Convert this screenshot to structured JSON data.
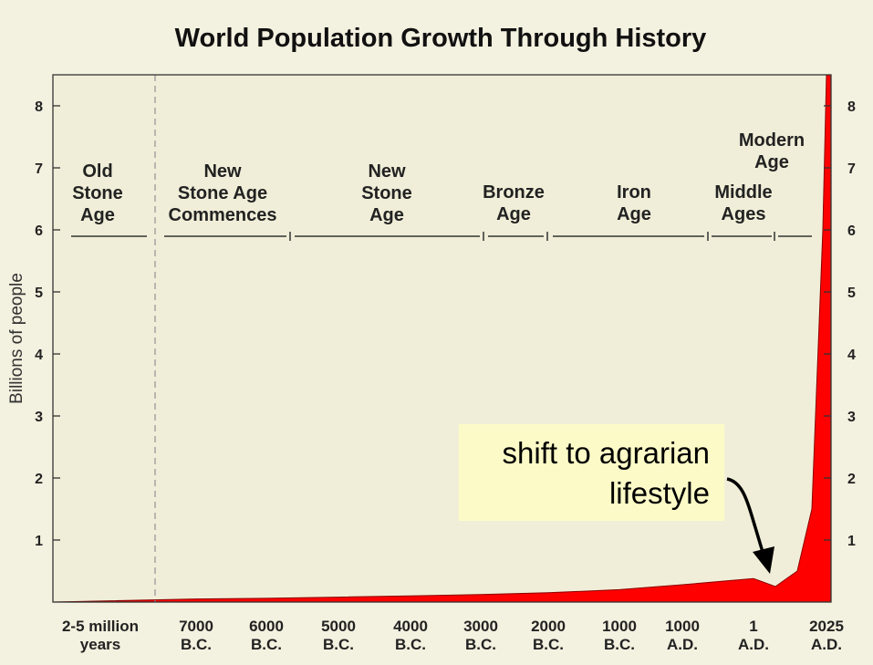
{
  "chart_data": {
    "type": "area",
    "title": "World Population Growth Through History",
    "ylabel": "Billions of people",
    "ylim": [
      0,
      8.5
    ],
    "yticks": [
      1,
      2,
      3,
      4,
      5,
      6,
      7,
      8
    ],
    "grid": false,
    "fill_color": "#ff0000",
    "x_tick_labels": [
      [
        "2-5 million",
        "years"
      ],
      [
        "7000",
        "B.C."
      ],
      [
        "6000",
        "B.C."
      ],
      [
        "5000",
        "B.C."
      ],
      [
        "4000",
        "B.C."
      ],
      [
        "3000",
        "B.C."
      ],
      [
        "2000",
        "B.C."
      ],
      [
        "1000",
        "B.C."
      ],
      [
        "1000",
        "A.D."
      ],
      [
        "1",
        "A.D."
      ],
      [
        "2025",
        "A.D."
      ]
    ],
    "ages": [
      {
        "label": [
          "Old",
          "Stone",
          "Age"
        ]
      },
      {
        "label": [
          "New",
          "Stone Age",
          "Commences"
        ]
      },
      {
        "label": [
          "New",
          "Stone",
          "Age"
        ]
      },
      {
        "label": [
          "Bronze",
          "Age"
        ]
      },
      {
        "label": [
          "Iron",
          "Age"
        ]
      },
      {
        "label": [
          "Middle",
          "Ages"
        ]
      },
      {
        "label": [
          "Modern",
          "Age"
        ]
      }
    ],
    "annotation": {
      "lines": [
        "shift to agrarian",
        "lifestyle"
      ],
      "box_color": "#fcfbc7"
    },
    "series": [
      {
        "x_tick_index": [
          0,
          1,
          2,
          3,
          4,
          5,
          6,
          7,
          8,
          9,
          9.3,
          9.6,
          9.8,
          9.95,
          10
        ],
        "values": [
          0.0,
          0.05,
          0.06,
          0.08,
          0.1,
          0.12,
          0.15,
          0.2,
          0.28,
          0.38,
          0.25,
          0.5,
          1.5,
          6.0,
          8.5
        ]
      }
    ]
  }
}
